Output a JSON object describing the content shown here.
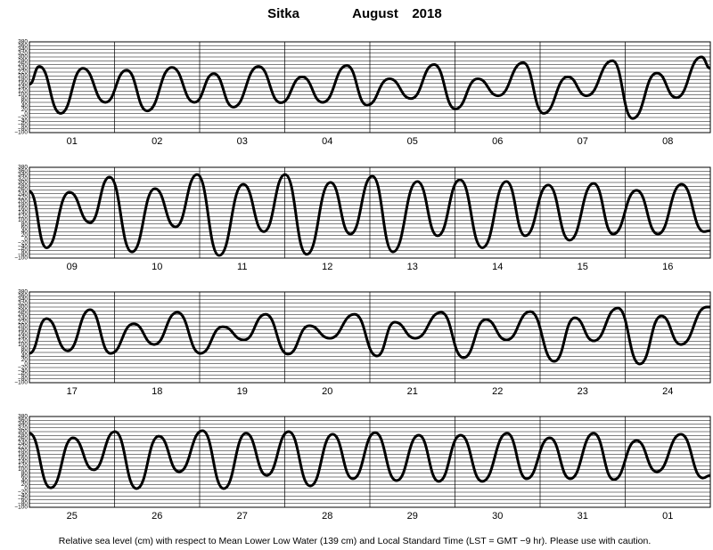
{
  "header": {
    "place": "Sitka",
    "month": "August",
    "year": "2018"
  },
  "footer": "Relative sea level (cm) with respect to Mean Lower Low Water (139 cm) and Local Standard Time (LST = GMT −9 hr). Please use with caution.",
  "chart_data": [
    {
      "type": "line",
      "categories": [
        "01",
        "02",
        "03",
        "04",
        "05",
        "06",
        "07",
        "08"
      ],
      "x": [
        0,
        2.8,
        8.8,
        15.1,
        21.4,
        27.4,
        33.2,
        40.2,
        46.5,
        52.0,
        57.5,
        64.6,
        70.9,
        76.9,
        82.7,
        89.5,
        95.2,
        101.5,
        107.6,
        114.1,
        120.1,
        126.4,
        132.2,
        139.2,
        145.0,
        151.8,
        157.1,
        164.4,
        170.1,
        176.9,
        182.4,
        189.5,
        192
      ],
      "values": [
        156,
        250,
        2,
        240,
        60,
        230,
        15,
        245,
        60,
        212,
        35,
        250,
        58,
        195,
        60,
        255,
        45,
        185,
        80,
        260,
        25,
        185,
        95,
        270,
        2,
        195,
        95,
        280,
        -25,
        215,
        85,
        300,
        240
      ],
      "color": "#000000",
      "xlim": [
        0,
        192
      ],
      "xticks": [
        24,
        48,
        72,
        96,
        120,
        144,
        168
      ],
      "ylim": [
        -100,
        380
      ],
      "yticks": [
        {
          "value": -100,
          "label": "−100"
        },
        {
          "value": -80,
          "label": "−80"
        },
        {
          "value": -60,
          "label": "−60"
        },
        {
          "value": -40,
          "label": "−40"
        },
        {
          "value": -20,
          "label": "−20"
        },
        0,
        20,
        40,
        60,
        80,
        100,
        120,
        140,
        160,
        180,
        200,
        220,
        240,
        260,
        280,
        300,
        320,
        340,
        360,
        380
      ],
      "grid": true
    },
    {
      "type": "line",
      "categories": [
        "09",
        "10",
        "11",
        "12",
        "13",
        "14",
        "15",
        "16"
      ],
      "x": [
        0,
        4.8,
        11.3,
        17.1,
        22.6,
        28.9,
        35.4,
        41.2,
        47.3,
        53.5,
        60.3,
        66.1,
        72.1,
        78.2,
        84.9,
        90.5,
        96.7,
        102.5,
        109.4,
        115.1,
        121.4,
        127.7,
        134.5,
        139.8,
        146.3,
        152.3,
        159.1,
        164.6,
        171.2,
        177.2,
        183.9,
        190.2,
        192
      ],
      "values": [
        253,
        -45,
        248,
        88,
        328,
        -67,
        267,
        65,
        342,
        -86,
        290,
        40,
        342,
        -80,
        300,
        27,
        333,
        -67,
        305,
        18,
        314,
        -45,
        305,
        18,
        286,
        -5,
        295,
        27,
        258,
        27,
        290,
        40,
        45
      ],
      "color": "#000000",
      "xlim": [
        0,
        192
      ],
      "xticks": [
        24,
        48,
        72,
        96,
        120,
        144,
        168
      ],
      "ylim": [
        -100,
        380
      ],
      "yticks": [
        {
          "value": -100,
          "label": "−100"
        },
        {
          "value": -80,
          "label": "−80"
        },
        {
          "value": -60,
          "label": "−60"
        },
        {
          "value": -40,
          "label": "−40"
        },
        {
          "value": -20,
          "label": "−20"
        },
        0,
        20,
        40,
        60,
        80,
        100,
        120,
        140,
        160,
        180,
        200,
        220,
        240,
        260,
        280,
        300,
        320,
        340,
        360,
        380
      ],
      "grid": true
    },
    {
      "type": "line",
      "categories": [
        "17",
        "18",
        "19",
        "20",
        "21",
        "22",
        "23",
        "24"
      ],
      "x": [
        0,
        4.8,
        10.8,
        17.1,
        22.9,
        29.4,
        35.2,
        41.7,
        48.2,
        54.5,
        60.5,
        66.6,
        72.9,
        78.9,
        84.7,
        91.7,
        98.0,
        103.0,
        108.8,
        116.1,
        122.4,
        128.7,
        134.5,
        141.2,
        148.0,
        153.8,
        159.1,
        165.9,
        172.1,
        178.2,
        183.7,
        191.0,
        192
      ],
      "values": [
        55,
        239,
        69,
        286,
        55,
        211,
        102,
        272,
        55,
        196,
        126,
        262,
        51,
        201,
        135,
        262,
        41,
        220,
        135,
        272,
        32,
        234,
        126,
        276,
        13,
        243,
        121,
        295,
        -1,
        253,
        102,
        300,
        300
      ],
      "color": "#000000",
      "xlim": [
        0,
        192
      ],
      "xticks": [
        24,
        48,
        72,
        96,
        120,
        144,
        168
      ],
      "ylim": [
        -100,
        380
      ],
      "yticks": [
        {
          "value": -100,
          "label": "−100"
        },
        {
          "value": -80,
          "label": "−80"
        },
        {
          "value": -60,
          "label": "−60"
        },
        {
          "value": -40,
          "label": "−40"
        },
        {
          "value": -20,
          "label": "−20"
        },
        0,
        20,
        40,
        60,
        80,
        100,
        120,
        140,
        160,
        180,
        200,
        220,
        240,
        260,
        280,
        300,
        320,
        340,
        360,
        380
      ],
      "grid": true
    },
    {
      "type": "line",
      "categories": [
        "25",
        "26",
        "27",
        "28",
        "29",
        "30",
        "31",
        "01"
      ],
      "x": [
        0,
        6.0,
        12.3,
        18.1,
        24.1,
        30.2,
        36.5,
        42.2,
        48.8,
        54.8,
        61.1,
        66.9,
        73.1,
        79.2,
        85.5,
        91.2,
        97.5,
        103.5,
        109.8,
        115.4,
        121.6,
        127.7,
        134.7,
        140.2,
        146.7,
        152.5,
        159.1,
        164.8,
        171.2,
        176.9,
        183.7,
        189.9,
        192
      ],
      "values": [
        291,
        3,
        267,
        98,
        300,
        -1,
        276,
        88,
        305,
        -1,
        291,
        69,
        300,
        13,
        286,
        51,
        295,
        41,
        281,
        37,
        281,
        37,
        291,
        51,
        267,
        51,
        291,
        46,
        253,
        88,
        286,
        55,
        69
      ],
      "color": "#000000",
      "xlim": [
        0,
        192
      ],
      "xticks": [
        24,
        48,
        72,
        96,
        120,
        144,
        168
      ],
      "ylim": [
        -100,
        380
      ],
      "yticks": [
        {
          "value": -100,
          "label": "−100"
        },
        {
          "value": -80,
          "label": "−80"
        },
        {
          "value": -60,
          "label": "−60"
        },
        {
          "value": -40,
          "label": "−40"
        },
        {
          "value": -20,
          "label": "−20"
        },
        0,
        20,
        40,
        60,
        80,
        100,
        120,
        140,
        160,
        180,
        200,
        220,
        240,
        260,
        280,
        300,
        320,
        340,
        360,
        380
      ],
      "grid": true
    }
  ]
}
